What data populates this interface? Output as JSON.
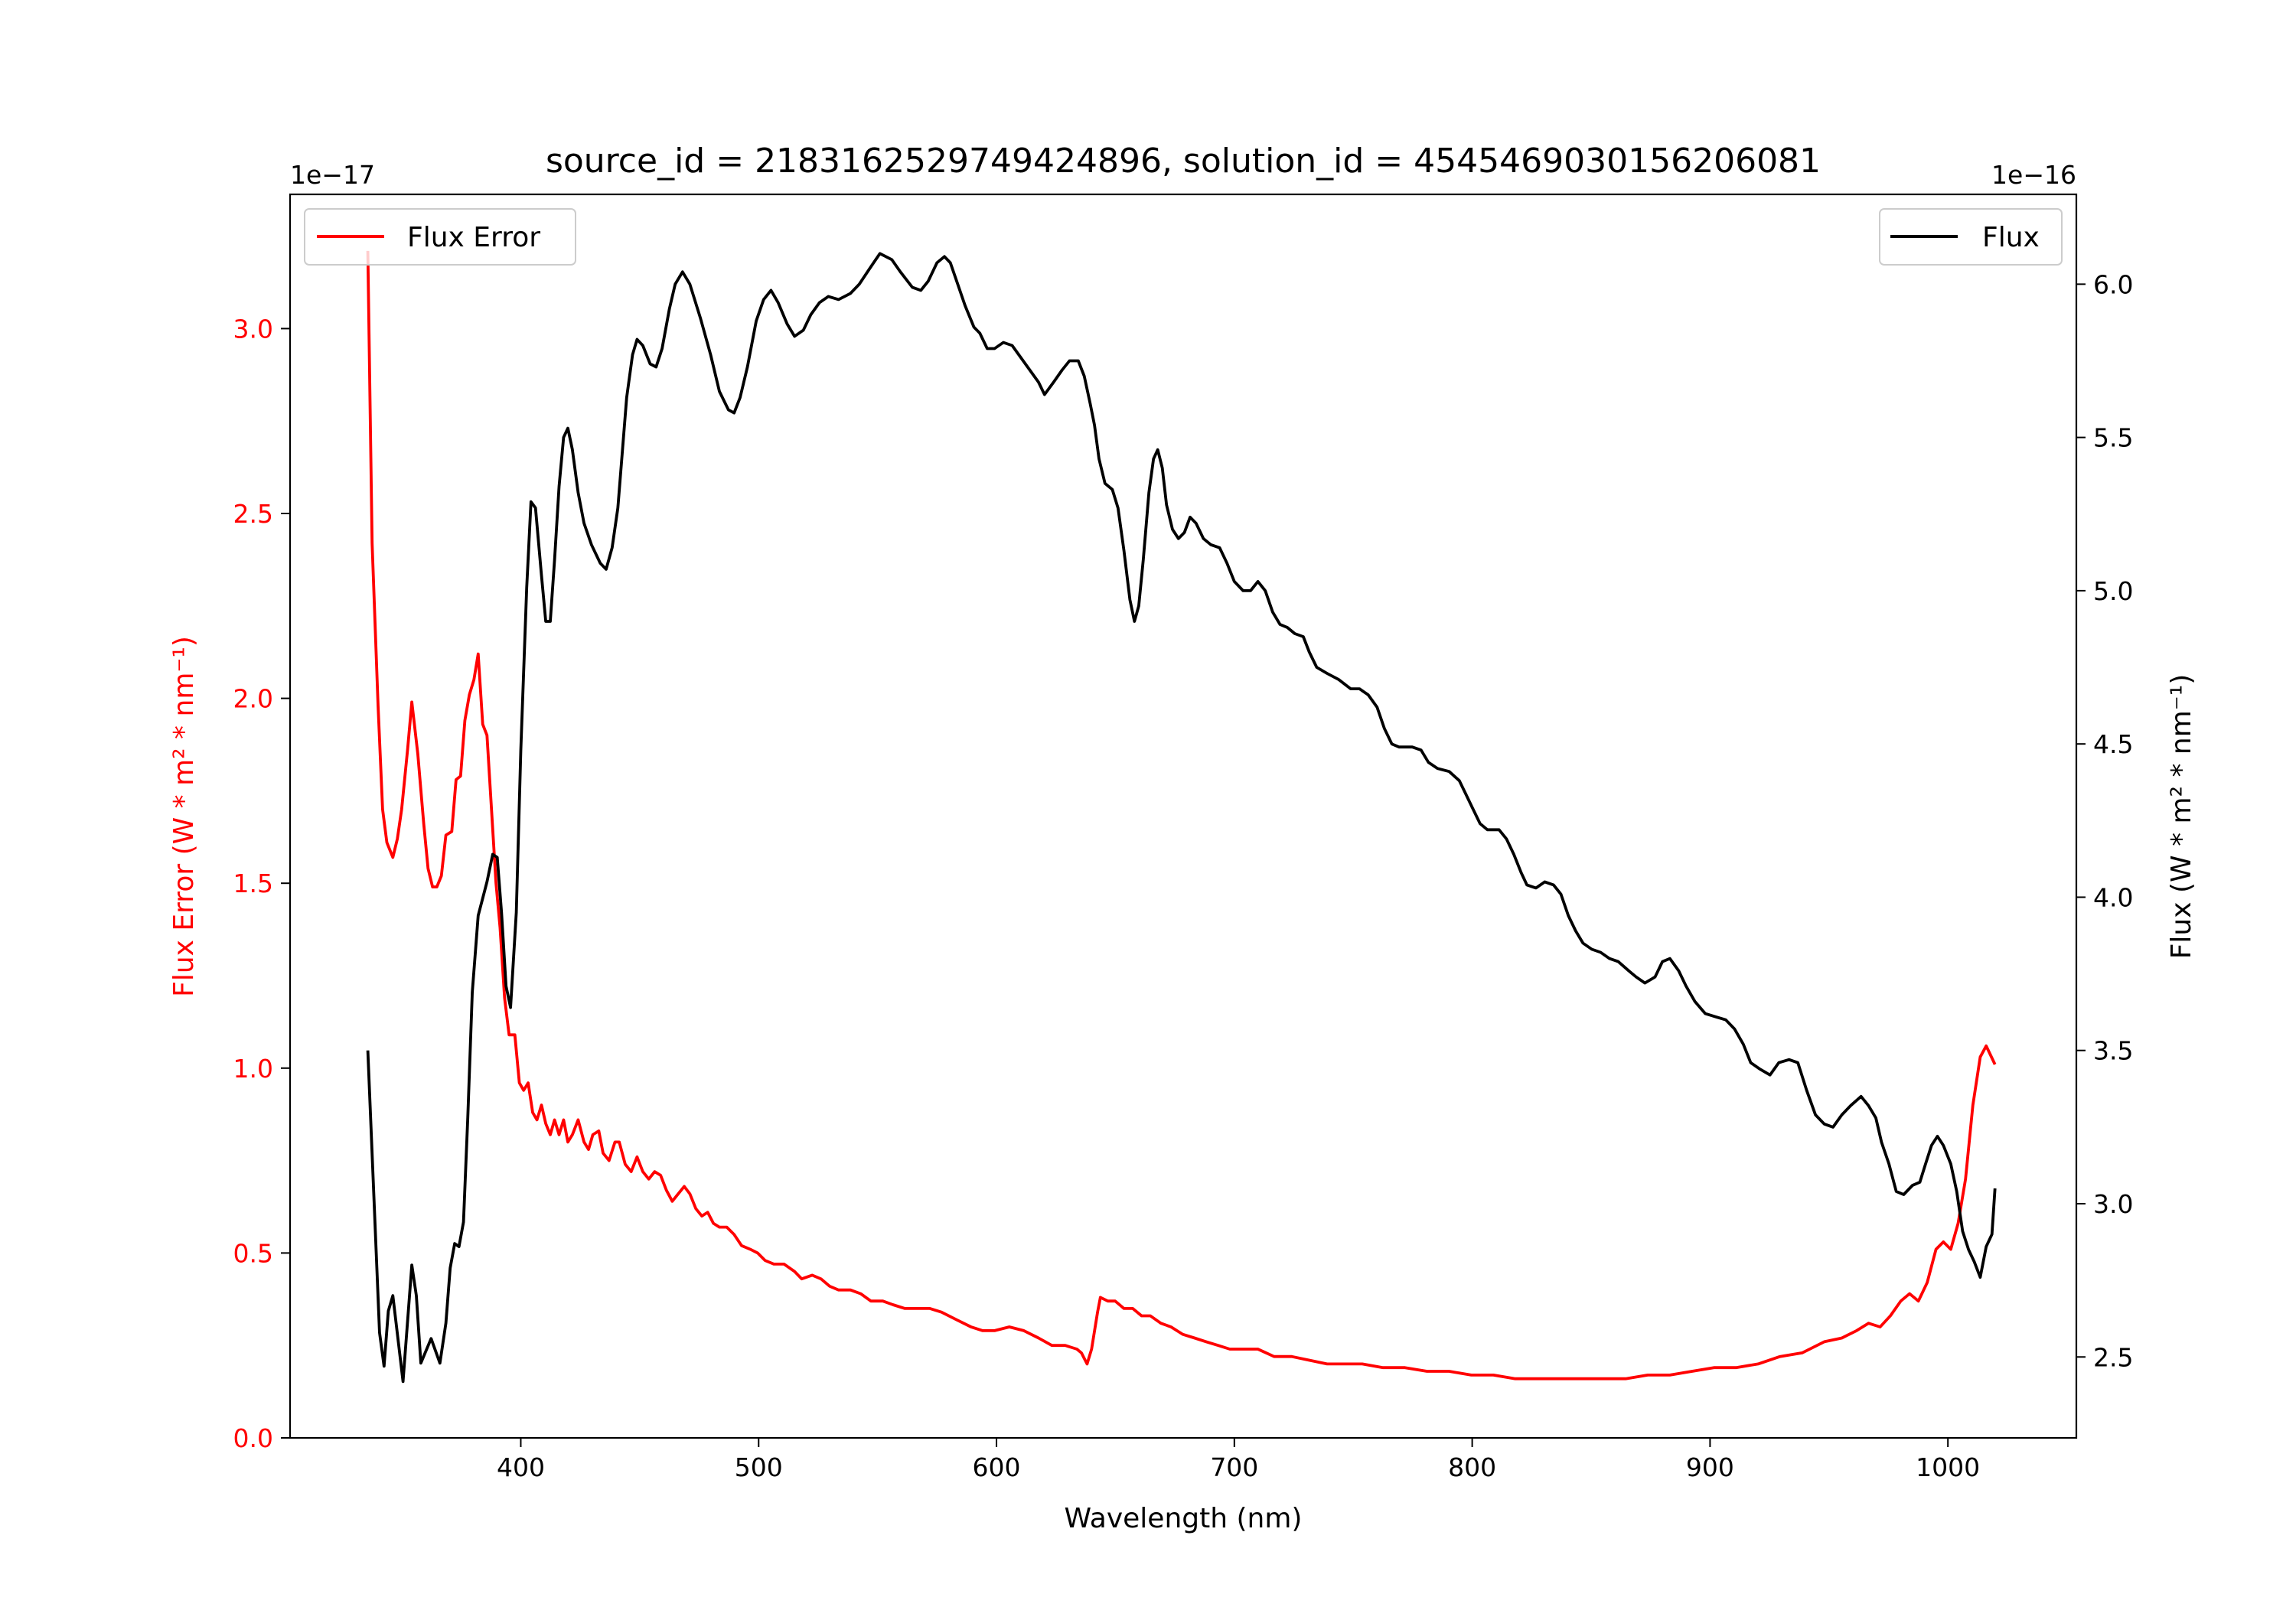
{
  "chart_data": {
    "type": "line",
    "title": "source_id = 2183162529749424896, solution_id = 4545469030156206081",
    "xlabel": "Wavelength (nm)",
    "ylabel_left": "Flux Error (W * m$^2$ * nm$^{-1}$)",
    "ylabel_left_display": "Flux Error (W * m² * nm⁻¹)",
    "ylabel_right_display": "Flux (W * m² * nm⁻¹)",
    "left_offset_text": "1e−17",
    "right_offset_text": "1e−16",
    "xlim": [
      303,
      1054
    ],
    "ylim_left": [
      0,
      3.363
    ],
    "ylim_right": [
      2.236,
      6.293
    ],
    "xticks": [
      400,
      500,
      600,
      700,
      800,
      900,
      1000
    ],
    "yticks_left": [
      "0.0",
      "0.5",
      "1.0",
      "1.5",
      "2.0",
      "2.5",
      "3.0"
    ],
    "yticks_right": [
      "2.5",
      "3.0",
      "3.5",
      "4.0",
      "4.5",
      "5.0",
      "5.5",
      "6.0"
    ],
    "grid": false,
    "legends": [
      {
        "label": "Flux Error",
        "color": "#ff0000",
        "placement": "upper-left"
      },
      {
        "label": "Flux",
        "color": "#000000",
        "placement": "upper-right"
      }
    ],
    "series": [
      {
        "name": "Flux Error",
        "axis": "left",
        "color": "#ff0000",
        "x": [
          335.7,
          337.5,
          340,
          341.9,
          343.7,
          346.2,
          348.1,
          349.9,
          352.4,
          354.2,
          356.7,
          359.2,
          361,
          362.9,
          364.7,
          366.6,
          368.5,
          371,
          372.8,
          374.7,
          376.5,
          378.4,
          380.3,
          382.1,
          384,
          385.8,
          387.7,
          389.6,
          391.3,
          393.2,
          395.1,
          397.5,
          399.4,
          401.2,
          403.1,
          405,
          406.8,
          408.7,
          410.5,
          412.4,
          414.2,
          416.1,
          418,
          419.8,
          421.7,
          424.1,
          426.6,
          428.5,
          430.3,
          432.8,
          434.6,
          437.1,
          439.6,
          441.4,
          443.9,
          446.4,
          448.9,
          451.3,
          453.8,
          456.3,
          458.8,
          461.2,
          463.7,
          466.2,
          468.7,
          471.1,
          473.6,
          476.1,
          478.6,
          481,
          483.5,
          486.6,
          489.7,
          492.8,
          496.5,
          499.6,
          502.7,
          506.4,
          510.7,
          515.1,
          518.1,
          522.5,
          526.2,
          529.9,
          533.6,
          538.6,
          542.9,
          547.2,
          552.2,
          556.5,
          561.5,
          567,
          572,
          576.9,
          583.1,
          589.3,
          594.2,
          599.2,
          605.4,
          611.5,
          617.7,
          623.3,
          628.9,
          633.8,
          635.7,
          638.1,
          640,
          642.5,
          643.7,
          646.8,
          649.9,
          653.6,
          657.3,
          661,
          664.7,
          669.1,
          673.4,
          678.3,
          683.3,
          688.2,
          693.2,
          698.1,
          703.7,
          709.9,
          716.7,
          724.1,
          731.5,
          739,
          746.4,
          753.8,
          762.5,
          771.7,
          781,
          790.3,
          799.6,
          808.9,
          818.1,
          827.4,
          836.7,
          846,
          855.2,
          864.5,
          873.8,
          883.1,
          892.4,
          901.6,
          910.9,
          920.2,
          929.4,
          938.7,
          948,
          955.4,
          961.6,
          966.6,
          971.5,
          975.8,
          980.2,
          983.9,
          987.6,
          991.3,
          995,
          998.1,
          1001.2,
          1004.3,
          1007.4,
          1010.5,
          1013.6,
          1016.1,
          1019.8
        ],
        "y": [
          3.21,
          2.42,
          1.98,
          1.7,
          1.61,
          1.57,
          1.62,
          1.7,
          1.86,
          1.99,
          1.85,
          1.66,
          1.54,
          1.49,
          1.49,
          1.52,
          1.63,
          1.64,
          1.78,
          1.79,
          1.94,
          2.01,
          2.05,
          2.12,
          1.93,
          1.9,
          1.7,
          1.5,
          1.38,
          1.19,
          1.09,
          1.09,
          0.96,
          0.94,
          0.96,
          0.88,
          0.86,
          0.9,
          0.85,
          0.82,
          0.86,
          0.82,
          0.86,
          0.8,
          0.82,
          0.86,
          0.8,
          0.78,
          0.82,
          0.83,
          0.77,
          0.75,
          0.8,
          0.8,
          0.74,
          0.72,
          0.76,
          0.72,
          0.7,
          0.72,
          0.71,
          0.67,
          0.64,
          0.66,
          0.68,
          0.66,
          0.62,
          0.6,
          0.61,
          0.58,
          0.57,
          0.57,
          0.55,
          0.52,
          0.51,
          0.5,
          0.48,
          0.47,
          0.47,
          0.45,
          0.43,
          0.44,
          0.43,
          0.41,
          0.4,
          0.4,
          0.39,
          0.37,
          0.37,
          0.36,
          0.35,
          0.35,
          0.35,
          0.34,
          0.32,
          0.3,
          0.29,
          0.29,
          0.3,
          0.29,
          0.27,
          0.25,
          0.25,
          0.24,
          0.23,
          0.2,
          0.24,
          0.34,
          0.38,
          0.37,
          0.37,
          0.35,
          0.35,
          0.33,
          0.33,
          0.31,
          0.3,
          0.28,
          0.27,
          0.26,
          0.25,
          0.24,
          0.24,
          0.24,
          0.22,
          0.22,
          0.21,
          0.2,
          0.2,
          0.2,
          0.19,
          0.19,
          0.18,
          0.18,
          0.17,
          0.17,
          0.16,
          0.16,
          0.16,
          0.16,
          0.16,
          0.16,
          0.17,
          0.17,
          0.18,
          0.19,
          0.19,
          0.2,
          0.22,
          0.23,
          0.26,
          0.27,
          0.29,
          0.31,
          0.3,
          0.33,
          0.37,
          0.39,
          0.37,
          0.42,
          0.51,
          0.53,
          0.51,
          0.58,
          0.7,
          0.9,
          1.03,
          1.06,
          1.01
        ]
      },
      {
        "name": "Flux",
        "axis": "right",
        "color": "#000000",
        "x": [
          335.7,
          340.6,
          342.5,
          344.3,
          346.2,
          350.5,
          354.2,
          356.1,
          358,
          362.3,
          366,
          368.5,
          370.3,
          372.2,
          374,
          375.9,
          377.7,
          379.6,
          382.1,
          385.8,
          388.2,
          390.1,
          391.9,
          393.8,
          395.7,
          398.1,
          400,
          402.5,
          404.3,
          406.2,
          408.7,
          410.5,
          412.4,
          414.2,
          416.1,
          418,
          419.8,
          421.7,
          424.1,
          426.6,
          429.7,
          433.4,
          435.9,
          438.4,
          440.8,
          444.5,
          447,
          448.9,
          451.3,
          454.4,
          456.9,
          459.4,
          462.5,
          464.9,
          468,
          471.1,
          475.5,
          479.8,
          483.5,
          487.3,
          489.7,
          492.2,
          495.3,
          499,
          502.1,
          505.2,
          508.2,
          512,
          515.1,
          518.8,
          521.9,
          525.6,
          529.3,
          533.6,
          538.6,
          542.3,
          546.6,
          551,
          556,
          559.6,
          564.6,
          568.2,
          571.3,
          575,
          578.1,
          580.6,
          583.7,
          586.8,
          590.5,
          593,
          596.1,
          599.2,
          602.9,
          606.6,
          610.3,
          614,
          617.7,
          620.2,
          624,
          627.6,
          630.7,
          634.4,
          636.9,
          639.4,
          641.2,
          643.1,
          645.6,
          648.7,
          651.1,
          653.6,
          656.1,
          658,
          659.8,
          661.7,
          664.1,
          666,
          667.8,
          669.7,
          671.5,
          674,
          676.5,
          679,
          681.4,
          683.9,
          687,
          690.1,
          693.8,
          696.9,
          700,
          703.7,
          706.8,
          709.9,
          713,
          716.1,
          719.2,
          722.3,
          725.4,
          729,
          731.5,
          734.6,
          739,
          743.9,
          748.9,
          752.6,
          756.3,
          760,
          763.1,
          766.2,
          769.3,
          774.8,
          778.5,
          781.6,
          785.4,
          790.3,
          794.6,
          797.1,
          800.2,
          803.3,
          806.4,
          811.3,
          814.4,
          817.5,
          820.6,
          823,
          826.8,
          830.5,
          834.2,
          837.3,
          840.4,
          843.5,
          846.6,
          850.3,
          854,
          857.7,
          861.4,
          865.8,
          868.9,
          872.6,
          876.9,
          880,
          883.1,
          886.8,
          889.9,
          893.6,
          898,
          902.3,
          906.6,
          910.3,
          914,
          917.1,
          920.8,
          925.2,
          928.9,
          933.2,
          936.9,
          940.6,
          944.3,
          948,
          951.7,
          955.4,
          959.1,
          963.5,
          966.6,
          969.7,
          972.1,
          975.2,
          978.3,
          981.4,
          985.1,
          988.2,
          990.6,
          993.1,
          995.6,
          998.1,
          1001.2,
          1003.7,
          1006.2,
          1008.7,
          1011.1,
          1013.6,
          1016.1,
          1018.5,
          1019.8
        ],
        "y": [
          3.5,
          2.58,
          2.47,
          2.65,
          2.7,
          2.42,
          2.8,
          2.7,
          2.48,
          2.56,
          2.48,
          2.61,
          2.79,
          2.87,
          2.86,
          2.94,
          3.28,
          3.69,
          3.94,
          4.05,
          4.14,
          4.13,
          3.95,
          3.71,
          3.64,
          3.95,
          4.48,
          5.01,
          5.29,
          5.27,
          5.05,
          4.9,
          4.9,
          5.1,
          5.34,
          5.5,
          5.53,
          5.46,
          5.32,
          5.22,
          5.15,
          5.09,
          5.07,
          5.14,
          5.27,
          5.63,
          5.77,
          5.82,
          5.8,
          5.74,
          5.73,
          5.79,
          5.92,
          6.0,
          6.04,
          6.0,
          5.89,
          5.77,
          5.65,
          5.59,
          5.58,
          5.63,
          5.73,
          5.88,
          5.95,
          5.98,
          5.94,
          5.87,
          5.83,
          5.85,
          5.9,
          5.94,
          5.96,
          5.95,
          5.97,
          6.0,
          6.05,
          6.1,
          6.08,
          6.04,
          5.99,
          5.98,
          6.01,
          6.07,
          6.09,
          6.07,
          6.0,
          5.93,
          5.86,
          5.84,
          5.79,
          5.79,
          5.81,
          5.8,
          5.76,
          5.72,
          5.68,
          5.64,
          5.68,
          5.72,
          5.75,
          5.75,
          5.7,
          5.61,
          5.54,
          5.43,
          5.35,
          5.33,
          5.27,
          5.13,
          4.97,
          4.9,
          4.95,
          5.1,
          5.32,
          5.43,
          5.46,
          5.4,
          5.28,
          5.2,
          5.17,
          5.19,
          5.24,
          5.22,
          5.17,
          5.15,
          5.14,
          5.09,
          5.03,
          5.0,
          5.0,
          5.03,
          5.0,
          4.93,
          4.89,
          4.88,
          4.86,
          4.85,
          4.8,
          4.75,
          4.73,
          4.71,
          4.68,
          4.68,
          4.66,
          4.62,
          4.55,
          4.5,
          4.49,
          4.49,
          4.48,
          4.44,
          4.42,
          4.41,
          4.38,
          4.34,
          4.29,
          4.24,
          4.22,
          4.22,
          4.19,
          4.14,
          4.08,
          4.04,
          4.03,
          4.05,
          4.04,
          4.01,
          3.94,
          3.89,
          3.85,
          3.83,
          3.82,
          3.8,
          3.79,
          3.76,
          3.74,
          3.72,
          3.74,
          3.79,
          3.8,
          3.76,
          3.71,
          3.66,
          3.62,
          3.61,
          3.6,
          3.57,
          3.52,
          3.46,
          3.44,
          3.42,
          3.46,
          3.47,
          3.46,
          3.37,
          3.29,
          3.26,
          3.25,
          3.29,
          3.32,
          3.35,
          3.32,
          3.28,
          3.2,
          3.13,
          3.04,
          3.03,
          3.06,
          3.07,
          3.13,
          3.19,
          3.22,
          3.19,
          3.13,
          3.04,
          2.91,
          2.85,
          2.81,
          2.76,
          2.86,
          2.9,
          3.05
        ]
      }
    ]
  }
}
